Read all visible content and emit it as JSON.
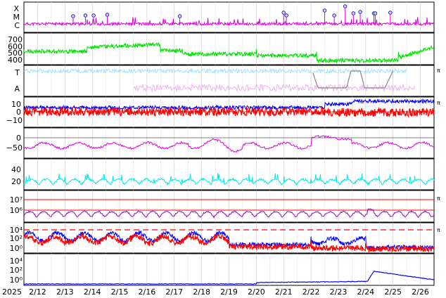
{
  "x_axis": {
    "year_label": "2025",
    "date_labels": [
      "2/12",
      "2/13",
      "2/14",
      "2/15",
      "2/16",
      "2/17",
      "2/18",
      "2/19",
      "2/20",
      "2/21",
      "2/22",
      "2/23",
      "2/24",
      "2/25",
      "2/26"
    ]
  },
  "colors": {
    "frame": "#000000",
    "grid": "#c8c8c8",
    "magenta": "#e000e0",
    "green": "#00e000",
    "lightblue": "#aadfff",
    "pink": "#f0b0f0",
    "blue": "#0000ff",
    "red": "#ff0000",
    "cyan": "#00e8e8",
    "purple": "#9900cc",
    "gray": "#888888"
  },
  "chart_data": [
    {
      "type": "line",
      "panel": "events",
      "ytick_labels": [
        "X",
        "M",
        "C"
      ],
      "series": [
        {
          "color": "#e000e0",
          "values": []
        }
      ],
      "markers": {
        "symbol": "circle",
        "x_days": [
          13.3,
          13.75,
          14.05,
          14.55,
          17.2,
          21.0,
          21.1,
          22.5,
          22.85,
          23.25,
          23.55,
          23.8,
          24.3,
          24.35,
          24.9
        ]
      }
    },
    {
      "type": "line",
      "panel": "speed",
      "ytick_labels": [
        "700",
        "600",
        "500",
        "400"
      ],
      "ylim": [
        350,
        750
      ],
      "series": [
        {
          "color": "#00e000",
          "values": []
        }
      ]
    },
    {
      "type": "line",
      "panel": "TA",
      "ytick_labels": [
        "T",
        "A"
      ],
      "right_label": "π",
      "series": [
        {
          "color": "#aadfff",
          "values": []
        },
        {
          "color": "#f0b0f0",
          "values": []
        },
        {
          "color": "#888888",
          "values": []
        }
      ]
    },
    {
      "type": "line",
      "panel": "bfield",
      "ytick_labels": [
        "10",
        "0",
        "−10"
      ],
      "ylim": [
        -15,
        15
      ],
      "right_label": "π",
      "series": [
        {
          "color": "#0000ff",
          "values": []
        },
        {
          "color": "#ff0000",
          "values": []
        }
      ]
    },
    {
      "type": "line",
      "panel": "dst",
      "ytick_labels": [
        "0",
        "−50"
      ],
      "ylim": [
        -80,
        10
      ],
      "series": [
        {
          "color": "#e000e0",
          "values": []
        }
      ]
    },
    {
      "type": "line",
      "panel": "kp",
      "ytick_labels": [
        "40",
        "20"
      ],
      "ylim": [
        0,
        50
      ],
      "series": [
        {
          "color": "#00e8e8",
          "values": []
        }
      ]
    },
    {
      "type": "line",
      "panel": "elec",
      "ytick_labels": [
        "10⁷",
        "10⁶"
      ],
      "right_label": "π",
      "series": [
        {
          "color": "#9900cc",
          "values": []
        }
      ]
    },
    {
      "type": "line",
      "panel": "prot",
      "ytick_labels": [
        "10⁴",
        "10²",
        "10⁰"
      ],
      "right_label": "π",
      "series": [
        {
          "color": "#0000ff",
          "values": []
        },
        {
          "color": "#ff0000",
          "values": []
        }
      ]
    },
    {
      "type": "line",
      "panel": "hiprot",
      "ytick_labels": [
        "10⁴",
        "10²",
        "10⁰"
      ],
      "series": [
        {
          "color": "#0000ff",
          "values": []
        }
      ]
    }
  ]
}
